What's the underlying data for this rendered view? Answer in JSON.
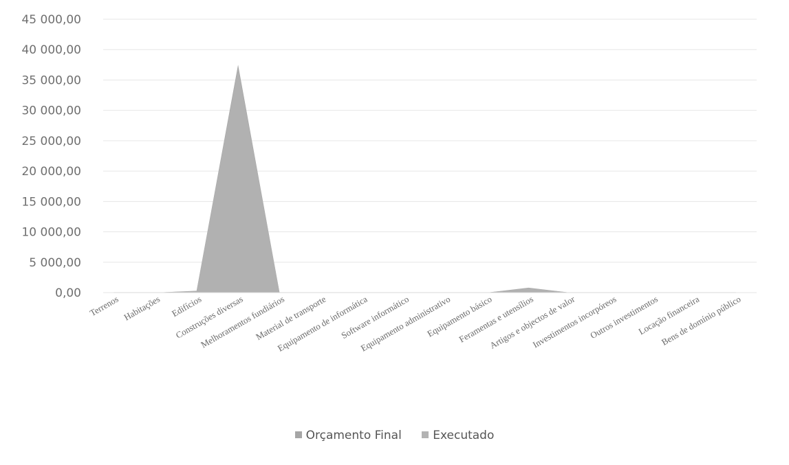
{
  "chart_data": {
    "type": "area",
    "categories": [
      "Terrenos",
      "Habitações",
      "Edifícios",
      "Construções diversas",
      "Melhoramentos fundiários",
      "Material de transporte",
      "Equipamento de informática",
      "Software informático",
      "Equipamento administrativo",
      "Equipamento básico",
      "Feramentas e utensílios",
      "Artigos e objectos de valor",
      "Investimentos incorpóreos",
      "Outros investimentos",
      "Locação financeira",
      "Bens de domínio público"
    ],
    "series": [
      {
        "name": "Orçamento Final",
        "color": "#a6a6a6",
        "values": [
          0,
          0,
          300,
          37500,
          0,
          0,
          0,
          0,
          0,
          0,
          800,
          0,
          0,
          0,
          0,
          0
        ]
      },
      {
        "name": "Executado",
        "color": "#b3b3b3",
        "values": [
          0,
          0,
          250,
          37000,
          0,
          0,
          0,
          0,
          0,
          0,
          750,
          0,
          0,
          0,
          0,
          0
        ]
      }
    ],
    "yticks": [
      "0,00",
      "5 000,00",
      "10 000,00",
      "15 000,00",
      "20 000,00",
      "25 000,00",
      "30 000,00",
      "35 000,00",
      "40 000,00",
      "45 000,00"
    ],
    "ylim": [
      0,
      45000
    ],
    "grid": true,
    "legend_position": "bottom"
  }
}
